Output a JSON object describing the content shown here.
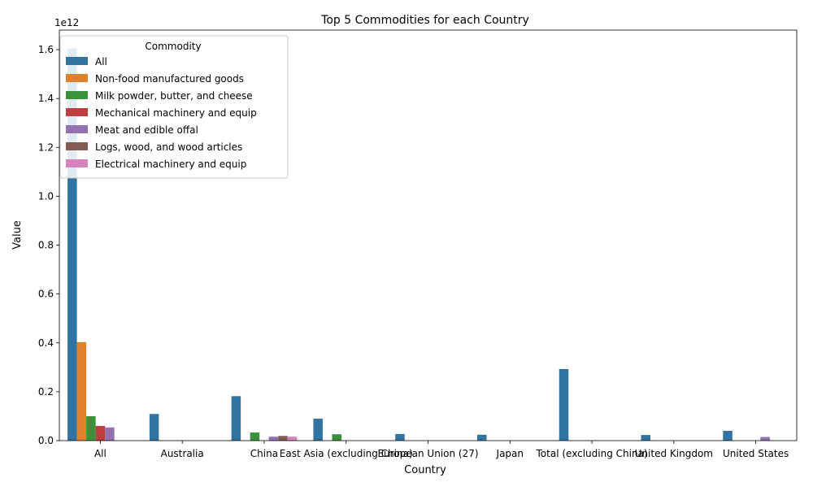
{
  "chart_data": {
    "type": "bar",
    "title": "Top 5 Commodities for each Country",
    "xlabel": "Country",
    "ylabel": "Value",
    "y_offset_label": "1e12",
    "ylim": [
      0,
      1680000000000.0
    ],
    "y_ticks": [
      0,
      200000000000.0,
      400000000000.0,
      600000000000.0,
      800000000000.0,
      1000000000000.0,
      1200000000000.0,
      1400000000000.0,
      1600000000000.0
    ],
    "y_tick_labels": [
      "0.0",
      "0.2",
      "0.4",
      "0.6",
      "0.8",
      "1.0",
      "1.2",
      "1.4",
      "1.6"
    ],
    "grid": false,
    "legend_title": "Commodity",
    "legend_position": "top-left",
    "categories": [
      "All",
      "Australia",
      "China",
      "East Asia (excluding China)",
      "European Union (27)",
      "Japan",
      "Total (excluding China)",
      "United Kingdom",
      "United States"
    ],
    "series": [
      {
        "name": "All",
        "color": "#3274a1",
        "values": [
          1605000000000.0,
          109000000000.0,
          182000000000.0,
          90000000000.0,
          27000000000.0,
          24000000000.0,
          293000000000.0,
          23000000000.0,
          40000000000.0
        ]
      },
      {
        "name": "Non-food manufactured goods",
        "color": "#e1812c",
        "values": [
          403000000000.0,
          null,
          null,
          null,
          null,
          null,
          null,
          null,
          null
        ]
      },
      {
        "name": "Milk powder, butter, and cheese",
        "color": "#3a923a",
        "values": [
          100000000000.0,
          null,
          33000000000.0,
          26000000000.0,
          null,
          null,
          null,
          null,
          null
        ]
      },
      {
        "name": "Mechanical machinery and equip",
        "color": "#c03d3e",
        "values": [
          60000000000.0,
          null,
          null,
          null,
          null,
          null,
          null,
          null,
          null
        ]
      },
      {
        "name": "Meat and edible offal",
        "color": "#9372b2",
        "values": [
          54000000000.0,
          null,
          16000000000.0,
          null,
          null,
          null,
          null,
          null,
          15000000000.0
        ]
      },
      {
        "name": "Logs, wood, and wood articles",
        "color": "#845b53",
        "values": [
          null,
          null,
          19000000000.0,
          null,
          null,
          null,
          null,
          null,
          null
        ]
      },
      {
        "name": "Electrical machinery and equip",
        "color": "#d684bd",
        "values": [
          null,
          null,
          16000000000.0,
          null,
          null,
          null,
          null,
          null,
          null
        ]
      }
    ]
  }
}
